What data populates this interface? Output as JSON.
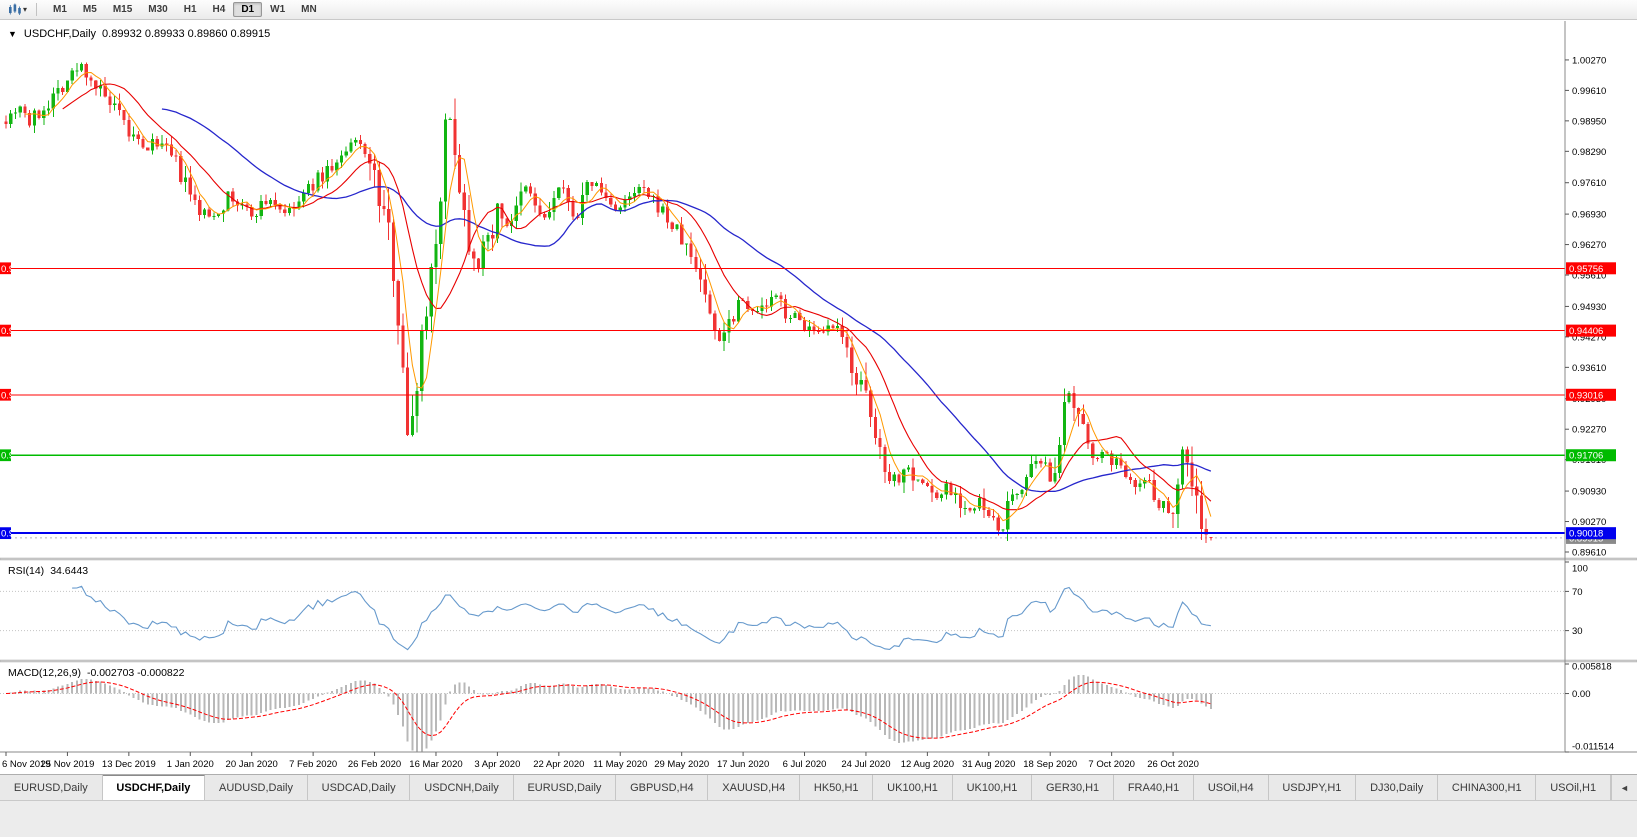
{
  "header": {
    "symbol_title": "USDCHF,Daily",
    "quote": "0.89932 0.89933 0.89860 0.89915"
  },
  "toolbar": {
    "timeframes": [
      "M1",
      "M5",
      "M15",
      "M30",
      "H1",
      "H4",
      "D1",
      "W1",
      "MN"
    ],
    "active_timeframe": "D1"
  },
  "chart_data": {
    "type": "candlestick",
    "symbol": "USDCHF",
    "timeframe": "Daily",
    "title": "USDCHF,Daily",
    "last_candle": {
      "open": 0.89932,
      "high": 0.89933,
      "low": 0.8986,
      "close": 0.89915
    },
    "up_color": "#12b512",
    "down_color": "#f13333",
    "price_range": {
      "min": 0.8948,
      "max": 1.0107
    },
    "price_axis_ticks": [
      1.0027,
      0.9961,
      0.9895,
      0.9829,
      0.9761,
      0.9693,
      0.9627,
      0.9561,
      0.9493,
      0.9427,
      0.9361,
      0.9293,
      0.9227,
      0.9161,
      0.9093,
      0.9027,
      0.8961
    ],
    "x_axis": {
      "labels": [
        "6 Nov 2019",
        "25 Nov 2019",
        "13 Dec 2019",
        "1 Jan 2020",
        "20 Jan 2020",
        "7 Feb 2020",
        "26 Feb 2020",
        "16 Mar 2020",
        "3 Apr 2020",
        "22 Apr 2020",
        "11 May 2020",
        "29 May 2020",
        "17 Jun 2020",
        "6 Jul 2020",
        "24 Jul 2020",
        "12 Aug 2020",
        "31 Aug 2020",
        "18 Sep 2020",
        "7 Oct 2020",
        "26 Oct 2020"
      ],
      "candle_indices": [
        0,
        13,
        26,
        39,
        52,
        65,
        78,
        91,
        104,
        117,
        130,
        143,
        156,
        169,
        182,
        195,
        208,
        221,
        234,
        247
      ]
    },
    "candle_count": 256,
    "seed": 7,
    "volatility": {
      "base": 0.001,
      "slope_mult": 0.9,
      "max": 0.005
    },
    "price_path_anchors": [
      [
        0,
        0.99
      ],
      [
        3,
        0.9932
      ],
      [
        5,
        0.989
      ],
      [
        7,
        0.9912
      ],
      [
        10,
        0.995
      ],
      [
        13,
        0.9985
      ],
      [
        16,
        1.0015
      ],
      [
        18,
        0.999
      ],
      [
        20,
        0.9955
      ],
      [
        23,
        0.9915
      ],
      [
        26,
        0.9868
      ],
      [
        29,
        0.9832
      ],
      [
        32,
        0.985
      ],
      [
        35,
        0.9815
      ],
      [
        37,
        0.978
      ],
      [
        39,
        0.9728
      ],
      [
        41,
        0.97
      ],
      [
        43,
        0.9688
      ],
      [
        45,
        0.9705
      ],
      [
        47,
        0.9732
      ],
      [
        49,
        0.9715
      ],
      [
        52,
        0.9692
      ],
      [
        54,
        0.9712
      ],
      [
        56,
        0.9726
      ],
      [
        58,
        0.9705
      ],
      [
        60,
        0.9696
      ],
      [
        62,
        0.9718
      ],
      [
        65,
        0.9758
      ],
      [
        68,
        0.9788
      ],
      [
        71,
        0.9812
      ],
      [
        74,
        0.9848
      ],
      [
        76,
        0.984
      ],
      [
        78,
        0.9762
      ],
      [
        80,
        0.969
      ],
      [
        82,
        0.959
      ],
      [
        84,
        0.938
      ],
      [
        85,
        0.919
      ],
      [
        86,
        0.926
      ],
      [
        87,
        0.9345
      ],
      [
        89,
        0.9505
      ],
      [
        91,
        0.9645
      ],
      [
        92,
        0.976
      ],
      [
        93,
        0.9865
      ],
      [
        94,
        0.9895
      ],
      [
        95,
        0.9855
      ],
      [
        96,
        0.976
      ],
      [
        98,
        0.964
      ],
      [
        100,
        0.9585
      ],
      [
        102,
        0.9635
      ],
      [
        104,
        0.9705
      ],
      [
        106,
        0.9672
      ],
      [
        108,
        0.9695
      ],
      [
        110,
        0.9748
      ],
      [
        112,
        0.9712
      ],
      [
        114,
        0.968
      ],
      [
        117,
        0.9748
      ],
      [
        119,
        0.9712
      ],
      [
        121,
        0.9692
      ],
      [
        124,
        0.9762
      ],
      [
        126,
        0.974
      ],
      [
        128,
        0.9712
      ],
      [
        130,
        0.9706
      ],
      [
        132,
        0.9722
      ],
      [
        134,
        0.9748
      ],
      [
        136,
        0.9726
      ],
      [
        138,
        0.9712
      ],
      [
        140,
        0.9682
      ],
      [
        143,
        0.9638
      ],
      [
        145,
        0.96
      ],
      [
        147,
        0.956
      ],
      [
        149,
        0.947
      ],
      [
        151,
        0.9425
      ],
      [
        153,
        0.9462
      ],
      [
        155,
        0.951
      ],
      [
        157,
        0.9502
      ],
      [
        159,
        0.9478
      ],
      [
        161,
        0.9498
      ],
      [
        163,
        0.9512
      ],
      [
        165,
        0.9482
      ],
      [
        167,
        0.9468
      ],
      [
        169,
        0.9455
      ],
      [
        171,
        0.9432
      ],
      [
        173,
        0.9428
      ],
      [
        175,
        0.9448
      ],
      [
        177,
        0.9415
      ],
      [
        179,
        0.9372
      ],
      [
        181,
        0.9315
      ],
      [
        183,
        0.9242
      ],
      [
        185,
        0.9178
      ],
      [
        187,
        0.9132
      ],
      [
        189,
        0.9118
      ],
      [
        191,
        0.9152
      ],
      [
        193,
        0.9112
      ],
      [
        195,
        0.9106
      ],
      [
        197,
        0.9075
      ],
      [
        199,
        0.9108
      ],
      [
        201,
        0.9088
      ],
      [
        203,
        0.9058
      ],
      [
        205,
        0.9045
      ],
      [
        206,
        0.9072
      ],
      [
        208,
        0.9032
      ],
      [
        210,
        0.9008
      ],
      [
        212,
        0.9052
      ],
      [
        214,
        0.9092
      ],
      [
        216,
        0.9122
      ],
      [
        218,
        0.9148
      ],
      [
        220,
        0.9142
      ],
      [
        221,
        0.9128
      ],
      [
        223,
        0.9215
      ],
      [
        225,
        0.9292
      ],
      [
        226,
        0.9268
      ],
      [
        228,
        0.9215
      ],
      [
        230,
        0.918
      ],
      [
        232,
        0.9168
      ],
      [
        234,
        0.9162
      ],
      [
        236,
        0.9142
      ],
      [
        238,
        0.9128
      ],
      [
        240,
        0.9108
      ],
      [
        242,
        0.9118
      ],
      [
        244,
        0.9072
      ],
      [
        246,
        0.905
      ],
      [
        247,
        0.9075
      ],
      [
        249,
        0.918
      ],
      [
        250,
        0.9162
      ],
      [
        251,
        0.912
      ],
      [
        252,
        0.907
      ],
      [
        253,
        0.9025
      ],
      [
        254,
        0.8992
      ],
      [
        255,
        0.89915
      ]
    ],
    "moving_averages": [
      {
        "period": 34,
        "color": "#2626cc",
        "width": 1.3
      },
      {
        "period": 13,
        "color": "#e80000",
        "width": 1.1
      },
      {
        "period": 5,
        "color": "#ff9900",
        "width": 1
      }
    ],
    "hlines": [
      {
        "value": 0.95756,
        "label": "0.95756",
        "color": "#ff0000",
        "width": 1
      },
      {
        "value": 0.94406,
        "label": "0.94406",
        "color": "#ff0000",
        "width": 1
      },
      {
        "value": 0.93016,
        "label": "0.93016",
        "color": "#ff0000",
        "width": 1
      },
      {
        "value": 0.91706,
        "label": "0.91706",
        "color": "#00bb00",
        "width": 1.4
      },
      {
        "value": 0.90018,
        "label": "0.90018",
        "color": "#0000ee",
        "width": 2
      }
    ],
    "bid": {
      "value": 0.89915,
      "label": "0.89915",
      "color": "#8a8a8a"
    },
    "indicators": {
      "rsi": {
        "name": "RSI(14)",
        "period": 14,
        "value_label": "34.6443",
        "levels": [
          70,
          30
        ],
        "axis_labels": [
          100,
          70,
          30
        ],
        "range": [
          0,
          100
        ],
        "color": "#6699cc"
      },
      "macd": {
        "name": "MACD(12,26,9)",
        "fast": 12,
        "slow": 26,
        "signal": 9,
        "values_text": "-0.002703 -0.000822",
        "range": [
          -0.011514,
          0.005818
        ],
        "axis": [
          {
            "v": 0.005818,
            "label": "0.005818"
          },
          {
            "v": 0,
            "label": "0.00"
          },
          {
            "v": -0.011514,
            "label": "-0.011514"
          }
        ],
        "hist_color": "#b8b8b8",
        "signal_color": "#ff0000"
      }
    }
  },
  "tabs": [
    {
      "label": "EURUSD,Daily",
      "active": false
    },
    {
      "label": "USDCHF,Daily",
      "active": true
    },
    {
      "label": "AUDUSD,Daily",
      "active": false
    },
    {
      "label": "USDCAD,Daily",
      "active": false
    },
    {
      "label": "USDCNH,Daily",
      "active": false
    },
    {
      "label": "EURUSD,Daily",
      "active": false
    },
    {
      "label": "GBPUSD,H4",
      "active": false
    },
    {
      "label": "XAUUSD,H4",
      "active": false
    },
    {
      "label": "HK50,H1",
      "active": false
    },
    {
      "label": "UK100,H1",
      "active": false
    },
    {
      "label": "UK100,H1",
      "active": false
    },
    {
      "label": "GER30,H1",
      "active": false
    },
    {
      "label": "FRA40,H1",
      "active": false
    },
    {
      "label": "USOil,H4",
      "active": false
    },
    {
      "label": "USDJPY,H1",
      "active": false
    },
    {
      "label": "DJ30,Daily",
      "active": false
    },
    {
      "label": "CHINA300,H1",
      "active": false
    },
    {
      "label": "USOil,H1",
      "active": false
    }
  ],
  "tab_scroll_icon": "◄"
}
